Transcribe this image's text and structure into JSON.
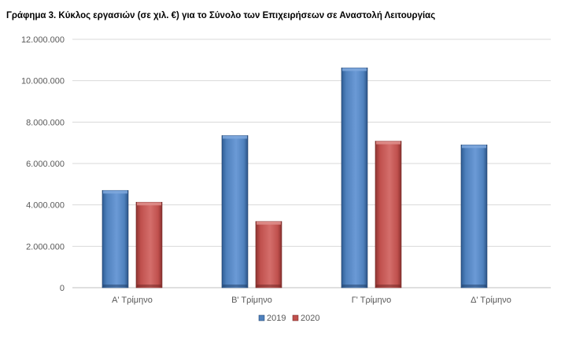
{
  "chart_data": {
    "type": "bar",
    "title": "Γράφημα 3.  Κύκλος εργασιών (σε χιλ. €) για το Σύνολο των Επιχειρήσεων σε Αναστολή Λειτουργίας",
    "xlabel": "",
    "ylabel": "",
    "categories": [
      "Α' Τρίμηνο",
      "Β' Τρίμηνο",
      "Γ' Τρίμηνο",
      "Δ' Τρίμηνο"
    ],
    "series": [
      {
        "name": "2019",
        "values": [
          4700000,
          7350000,
          10620000,
          6900000
        ],
        "color": "#4f81bd"
      },
      {
        "name": "2020",
        "values": [
          4130000,
          3200000,
          7080000,
          null
        ],
        "color": "#c0504d"
      }
    ],
    "ylim": [
      0,
      12000000
    ],
    "yticks": [
      0,
      2000000,
      4000000,
      6000000,
      8000000,
      10000000,
      12000000
    ],
    "ytick_labels": [
      "0",
      "2.000.000",
      "4.000.000",
      "6.000.000",
      "8.000.000",
      "10.000.000",
      "12.000.000"
    ],
    "grid": true,
    "legend_position": "bottom"
  }
}
